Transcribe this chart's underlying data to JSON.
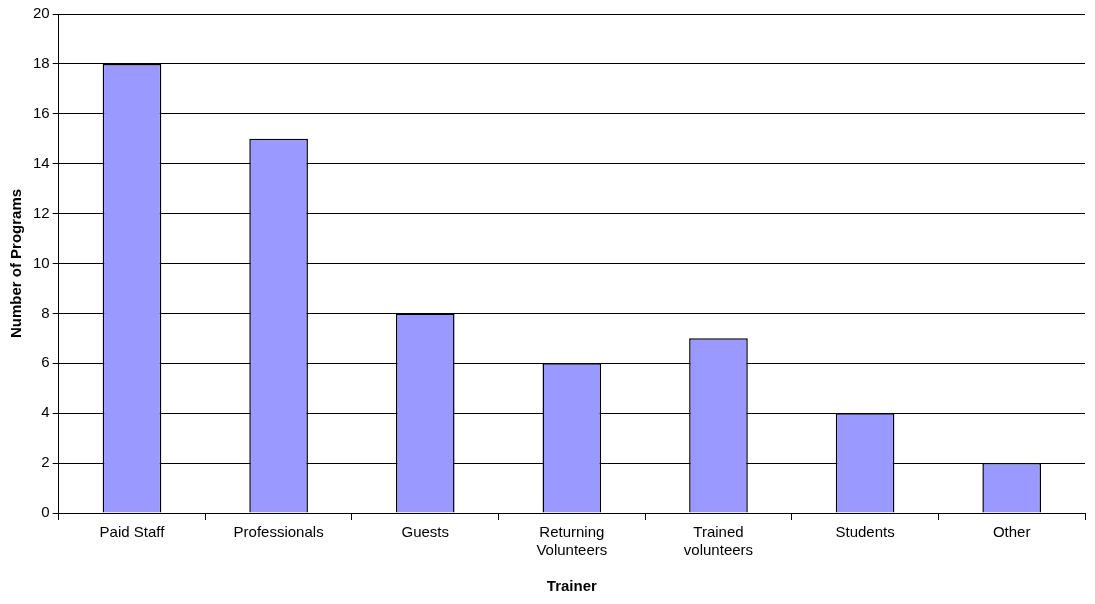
{
  "chart_data": {
    "type": "bar",
    "xlabel": "Trainer",
    "ylabel": "Number of Programs",
    "categories": [
      "Paid Staff",
      "Professionals",
      "Guests",
      "Returning Volunteers",
      "Trained volunteers",
      "Students",
      "Other"
    ],
    "values": [
      18,
      15,
      8,
      6,
      7,
      4,
      2
    ],
    "color": "#9999ff",
    "ylim": [
      0,
      20
    ],
    "yticks": [
      0,
      2,
      4,
      6,
      8,
      10,
      12,
      14,
      16,
      18,
      20
    ],
    "grid": "y",
    "legend": false
  }
}
